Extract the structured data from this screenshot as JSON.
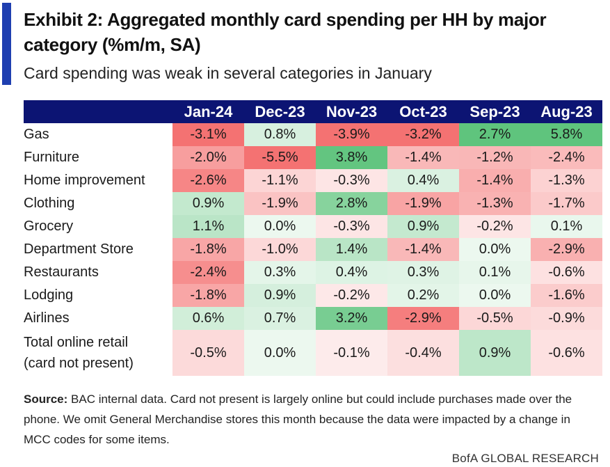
{
  "header": {
    "title": "Exhibit 2: Aggregated monthly card spending per HH by major category (%m/m, SA)",
    "subtitle": "Card spending was weak in several categories in January"
  },
  "footer": {
    "source_label": "Source:",
    "source_text": " BAC internal data. Card not present is largely online but could include purchases made over the phone. We omit General Merchandise stores this month because the data were impacted by a change in MCC codes for some items.",
    "brand": "BofA GLOBAL RESEARCH"
  },
  "colors": {
    "header_bg": "#0c1473",
    "accent_bar": "#1f3fb0",
    "neg_strong": "#f47272",
    "pos_strong": "#5fc47d",
    "neutral": "#ffffff"
  },
  "chart_data": {
    "type": "heatmap",
    "title": "Exhibit 2: Aggregated monthly card spending per HH by major category (%m/m, SA)",
    "columns": [
      "Jan-24",
      "Dec-23",
      "Nov-23",
      "Oct-23",
      "Sep-23",
      "Aug-23"
    ],
    "rows": [
      {
        "label": "Gas",
        "values": [
          -3.1,
          0.8,
          -3.9,
          -3.2,
          2.7,
          5.8
        ]
      },
      {
        "label": "Furniture",
        "values": [
          -2.0,
          -5.5,
          3.8,
          -1.4,
          -1.2,
          -2.4
        ]
      },
      {
        "label": "Home improvement",
        "values": [
          -2.6,
          -1.1,
          -0.3,
          0.4,
          -1.4,
          -1.3
        ]
      },
      {
        "label": "Clothing",
        "values": [
          0.9,
          -1.9,
          2.8,
          -1.9,
          -1.3,
          -1.7
        ]
      },
      {
        "label": "Grocery",
        "values": [
          1.1,
          0.0,
          -0.3,
          0.9,
          -0.2,
          0.1
        ]
      },
      {
        "label": "Department Store",
        "values": [
          -1.8,
          -1.0,
          1.4,
          -1.4,
          0.0,
          -2.9
        ]
      },
      {
        "label": "Restaurants",
        "values": [
          -2.4,
          0.3,
          0.4,
          0.3,
          0.1,
          -0.6
        ]
      },
      {
        "label": "Lodging",
        "values": [
          -1.8,
          0.9,
          -0.2,
          0.2,
          0.0,
          -1.6
        ]
      },
      {
        "label": "Airlines",
        "values": [
          0.6,
          0.7,
          3.2,
          -2.9,
          -0.5,
          -0.9
        ]
      },
      {
        "label": "Total online retail (card not present)",
        "label_lines": [
          "Total online retail",
          "(card not present)"
        ],
        "values": [
          -0.5,
          0.0,
          -0.1,
          -0.4,
          0.9,
          -0.6
        ]
      }
    ],
    "value_format": "%",
    "decimals": 1
  }
}
